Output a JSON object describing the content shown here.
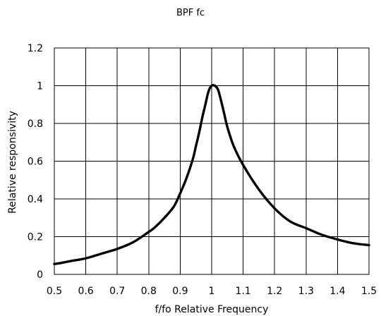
{
  "chart_data": {
    "type": "line",
    "title": "BPF fc",
    "xlabel": "f/fo Relative Frequency",
    "ylabel": "Relative responsivity",
    "xlim": [
      0.5,
      1.5
    ],
    "ylim": [
      0,
      1.2
    ],
    "xticks": [
      "0.5",
      "0.6",
      "0.7",
      "0.8",
      "0.9",
      "1",
      "1.1",
      "1.2",
      "1.3",
      "1.4",
      "1.5"
    ],
    "yticks": [
      "0",
      "0.2",
      "0.4",
      "0.6",
      "0.8",
      "1",
      "1.2"
    ],
    "grid": true,
    "series": [
      {
        "color": "#000000",
        "x": [
          0.5,
          0.52,
          0.55,
          0.6,
          0.65,
          0.7,
          0.75,
          0.8,
          0.82,
          0.85,
          0.88,
          0.9,
          0.92,
          0.94,
          0.95,
          0.96,
          0.97,
          0.98,
          0.99,
          1.0,
          1.01,
          1.02,
          1.03,
          1.04,
          1.05,
          1.07,
          1.1,
          1.15,
          1.2,
          1.25,
          1.3,
          1.35,
          1.4,
          1.45,
          1.5
        ],
        "y": [
          0.055,
          0.06,
          0.07,
          0.085,
          0.11,
          0.135,
          0.17,
          0.225,
          0.25,
          0.3,
          0.36,
          0.43,
          0.51,
          0.61,
          0.68,
          0.75,
          0.83,
          0.9,
          0.97,
          1.0,
          1.0,
          0.98,
          0.92,
          0.85,
          0.78,
          0.68,
          0.58,
          0.45,
          0.35,
          0.28,
          0.245,
          0.21,
          0.185,
          0.165,
          0.155
        ]
      }
    ]
  }
}
